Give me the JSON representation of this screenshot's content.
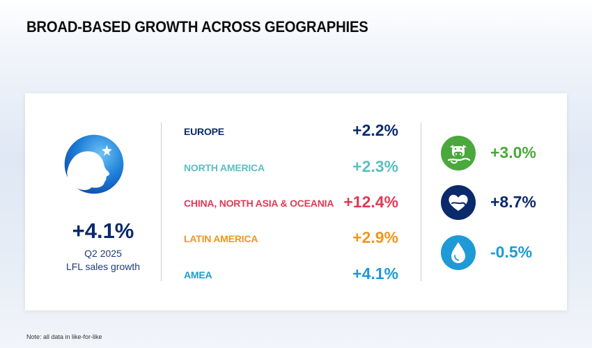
{
  "title": "BROAD-BASED GROWTH ACROSS GEOGRAPHIES",
  "summary": {
    "value": "+4.1%",
    "line1": "Q2 2025",
    "line2": "LFL sales growth"
  },
  "regions": [
    {
      "name": "EUROPE",
      "value": "+2.2%",
      "color": "#0a2a6b"
    },
    {
      "name": "NORTH AMERICA",
      "value": "+2.3%",
      "color": "#5bbfc2"
    },
    {
      "name": "CHINA, NORTH ASIA & OCEANIA",
      "value": "+12.4%",
      "color": "#e03a55"
    },
    {
      "name": "LATIN AMERICA",
      "value": "+2.9%",
      "color": "#f0961e"
    },
    {
      "name": "AMEA",
      "value": "+4.1%",
      "color": "#1e9ad6"
    }
  ],
  "categories": [
    {
      "icon": "dairy-cow-icon",
      "value": "+3.0%",
      "color": "#4aa83c"
    },
    {
      "icon": "heart-hand-icon",
      "value": "+8.7%",
      "color": "#0a2a6b"
    },
    {
      "icon": "water-drop-icon",
      "value": "-0.5%",
      "color": "#1e9ad6"
    }
  ],
  "note": "Note: all data in like-for-like"
}
